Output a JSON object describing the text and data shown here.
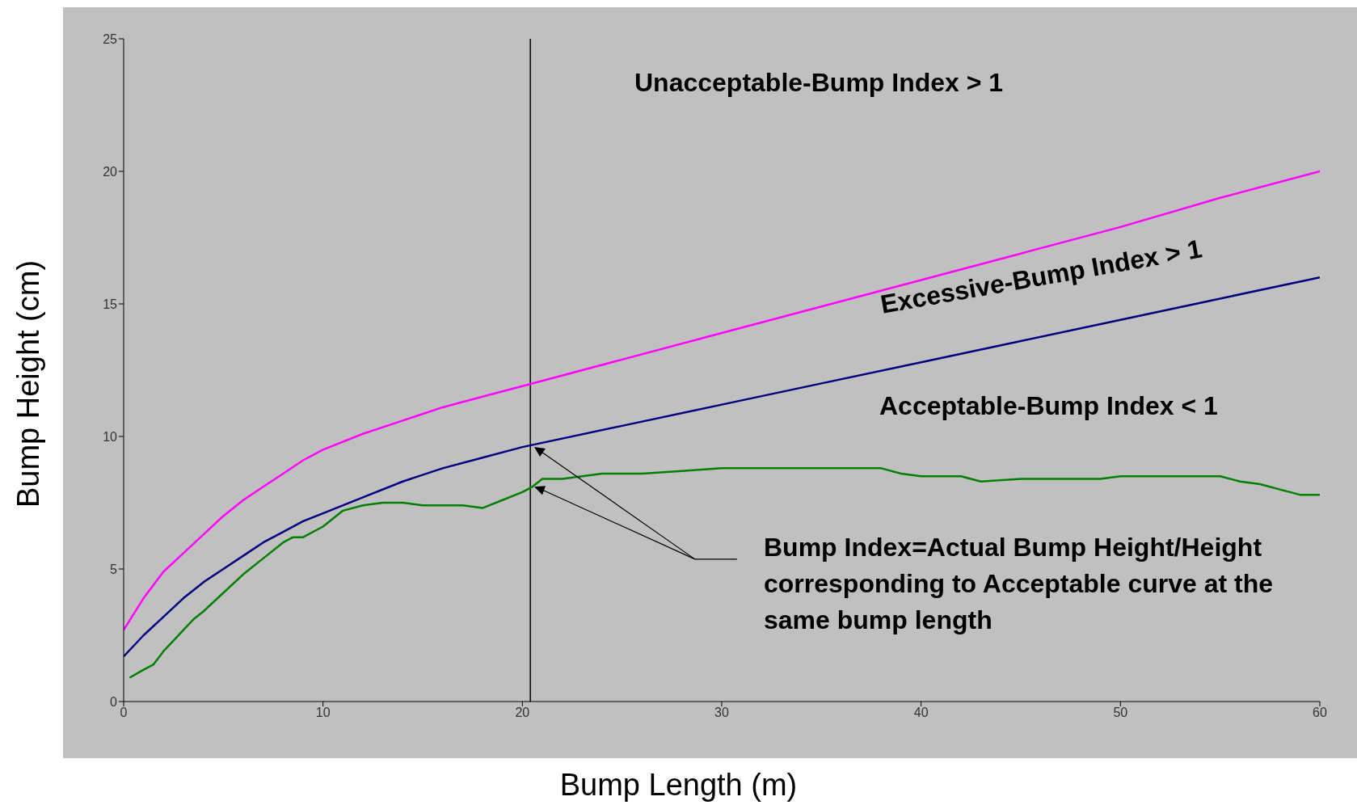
{
  "chart_data": {
    "type": "line",
    "xlabel": "Bump Length (m)",
    "ylabel": "Bump Height (cm)",
    "xlim": [
      0,
      60
    ],
    "xticks": [
      0,
      10,
      20,
      30,
      40,
      50,
      60
    ],
    "ylim": [
      0,
      25
    ],
    "yticks": [
      0,
      5,
      10,
      15,
      20,
      25
    ],
    "grid": false,
    "legend": false,
    "marker": "none",
    "line_style": "solid",
    "series": [
      {
        "color": "#ff00ff",
        "x": [
          0,
          1,
          2,
          3,
          4,
          5,
          6,
          7,
          8,
          9,
          10,
          12,
          14,
          16,
          18,
          20,
          25,
          30,
          35,
          40,
          45,
          50,
          55,
          60
        ],
        "values": [
          2.7,
          3.9,
          4.9,
          5.6,
          6.3,
          7.0,
          7.6,
          8.1,
          8.6,
          9.1,
          9.5,
          10.1,
          10.6,
          11.1,
          11.5,
          11.9,
          12.9,
          13.9,
          14.9,
          15.9,
          16.9,
          17.9,
          19.0,
          20.0
        ]
      },
      {
        "color": "#000080",
        "x": [
          0,
          1,
          2,
          3,
          4,
          5,
          6,
          7,
          8,
          9,
          10,
          12,
          14,
          16,
          18,
          20,
          25,
          30,
          35,
          40,
          45,
          50,
          55,
          60
        ],
        "values": [
          1.7,
          2.5,
          3.2,
          3.9,
          4.5,
          5.0,
          5.5,
          6.0,
          6.4,
          6.8,
          7.1,
          7.7,
          8.3,
          8.8,
          9.2,
          9.6,
          10.4,
          11.2,
          12.0,
          12.8,
          13.6,
          14.4,
          15.2,
          16.0
        ]
      },
      {
        "color": "#008000",
        "x": [
          0.3,
          1,
          1.5,
          2,
          2.5,
          3,
          3.5,
          4,
          5,
          6,
          7,
          8,
          8.5,
          9,
          10,
          11,
          12,
          13,
          14,
          15,
          16,
          17,
          18,
          19,
          20,
          20.5,
          21,
          22,
          23,
          24,
          25,
          26,
          28,
          30,
          32,
          34,
          36,
          38,
          39,
          40,
          42,
          43,
          45,
          47,
          49,
          50,
          52,
          54,
          55,
          56,
          57,
          58,
          59,
          60
        ],
        "values": [
          0.9,
          1.2,
          1.4,
          1.9,
          2.3,
          2.7,
          3.1,
          3.4,
          4.1,
          4.8,
          5.4,
          6.0,
          6.2,
          6.2,
          6.6,
          7.2,
          7.4,
          7.5,
          7.5,
          7.4,
          7.4,
          7.4,
          7.3,
          7.6,
          7.9,
          8.1,
          8.4,
          8.4,
          8.5,
          8.6,
          8.6,
          8.6,
          8.7,
          8.8,
          8.8,
          8.8,
          8.8,
          8.8,
          8.6,
          8.5,
          8.5,
          8.3,
          8.4,
          8.4,
          8.4,
          8.5,
          8.5,
          8.5,
          8.5,
          8.3,
          8.2,
          8.0,
          7.8,
          7.8
        ]
      }
    ],
    "ref_lines": [
      {
        "axis": "x",
        "value": 20.4,
        "color": "#000000"
      }
    ],
    "annotations": [
      "Unacceptable-Bump Index > 1",
      "Excessive-Bump Index > 1",
      "Acceptable-Bump Index < 1",
      "Bump Index=Actual Bump Height/Height corresponding to Acceptable curve at the same bump length"
    ]
  }
}
